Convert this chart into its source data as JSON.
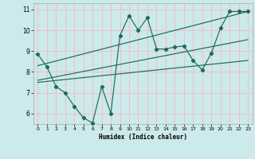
{
  "title": "",
  "xlabel": "Humidex (Indice chaleur)",
  "ylabel": "",
  "xlim": [
    -0.5,
    23.5
  ],
  "ylim": [
    5.5,
    11.3
  ],
  "xticks": [
    0,
    1,
    2,
    3,
    4,
    5,
    6,
    7,
    8,
    9,
    10,
    11,
    12,
    13,
    14,
    15,
    16,
    17,
    18,
    19,
    20,
    21,
    22,
    23
  ],
  "yticks": [
    6,
    7,
    8,
    9,
    10,
    11
  ],
  "bg_color": "#cce9eb",
  "grid_color": "#f0c0c0",
  "line_color": "#1a6b5a",
  "zigzag_x": [
    0,
    1,
    2,
    3,
    4,
    5,
    6,
    7,
    8,
    9,
    10,
    11,
    12,
    13,
    14,
    15,
    16,
    17,
    18,
    19,
    20,
    21,
    22,
    23
  ],
  "zigzag_y": [
    8.85,
    8.25,
    7.3,
    7.0,
    6.35,
    5.8,
    5.55,
    7.3,
    6.0,
    9.75,
    10.7,
    10.0,
    10.6,
    9.1,
    9.1,
    9.2,
    9.25,
    8.55,
    8.1,
    8.9,
    10.1,
    10.9,
    10.9,
    10.9
  ],
  "line1_x": [
    0,
    23
  ],
  "line1_y": [
    8.3,
    10.9
  ],
  "line2_x": [
    0,
    23
  ],
  "line2_y": [
    7.5,
    8.55
  ],
  "line3_x": [
    0,
    23
  ],
  "line3_y": [
    7.6,
    9.55
  ]
}
